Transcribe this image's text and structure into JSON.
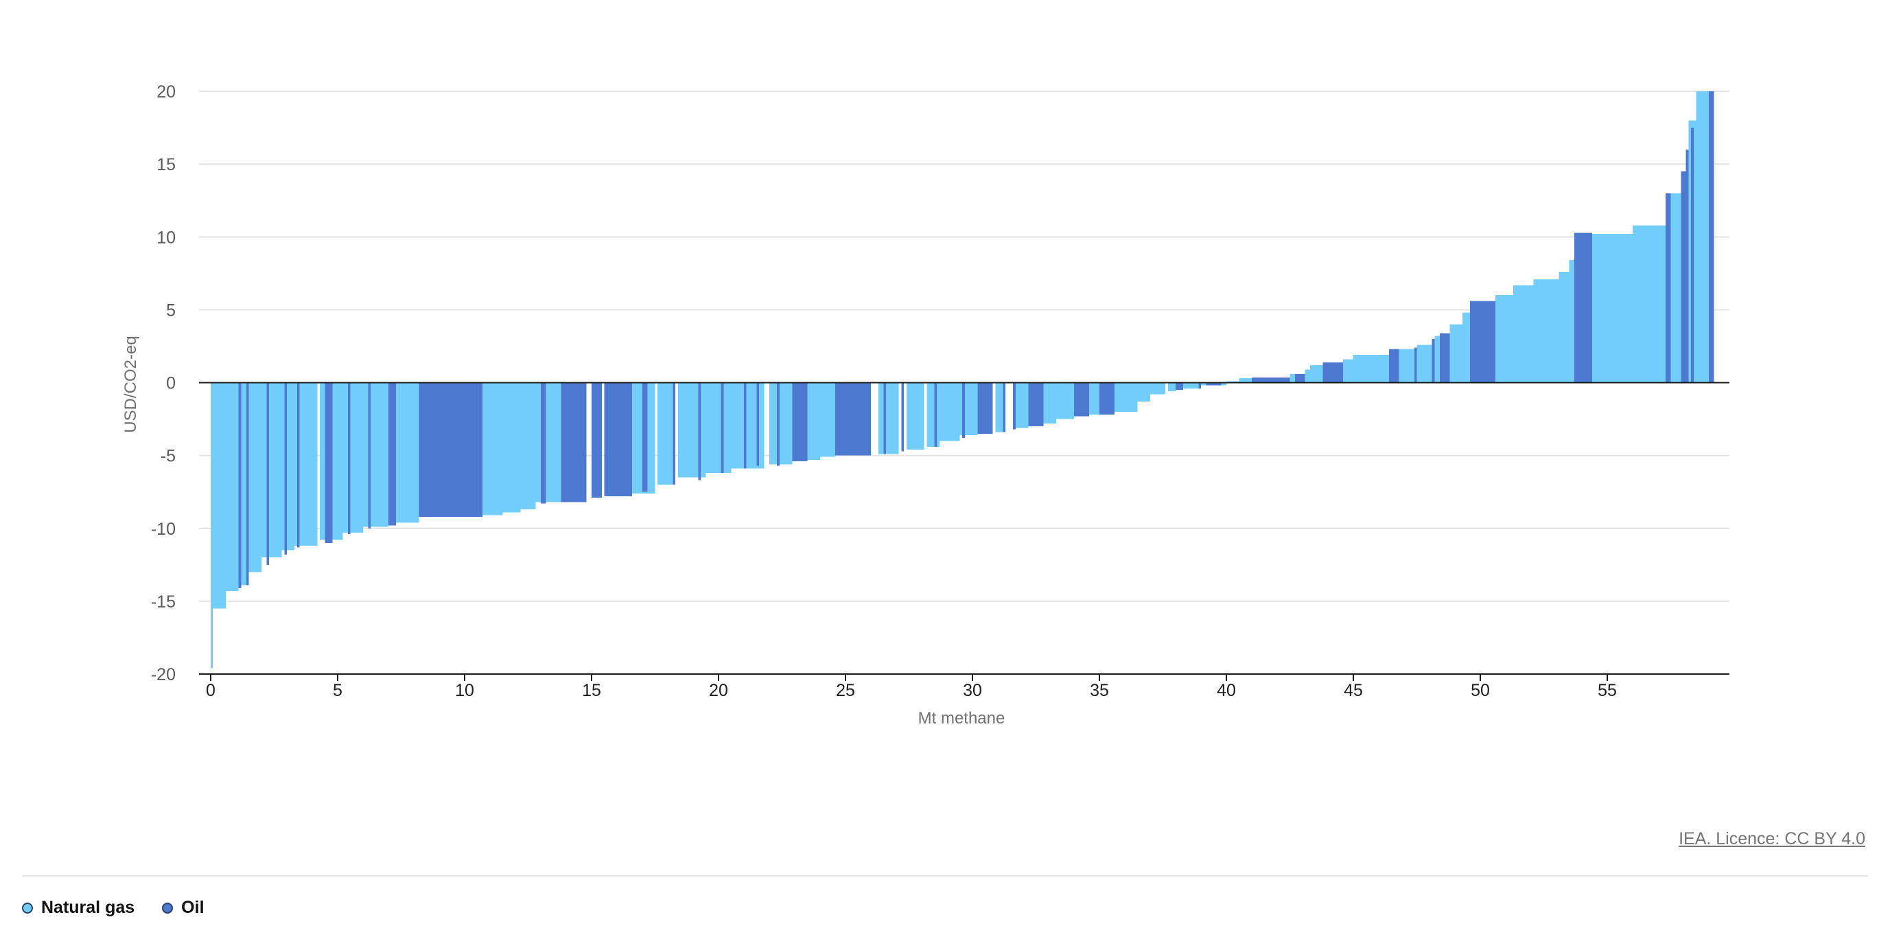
{
  "chart_data": {
    "type": "bar",
    "subtype": "marginal-abatement-cost-curve",
    "xlabel": "Mt methane",
    "ylabel": "USD/CO2-eq",
    "xlim": [
      -0.5,
      60
    ],
    "ylim": [
      -20,
      20
    ],
    "x_ticks": [
      0,
      5,
      10,
      15,
      20,
      25,
      30,
      35,
      40,
      45,
      50,
      55
    ],
    "y_ticks": [
      20,
      15,
      10,
      5,
      0,
      -5,
      -10,
      -15,
      -20
    ],
    "grid": true,
    "legend_position": "bottom-left",
    "colors": {
      "Natural gas": "#72cdfa",
      "Oil": "#4d79d1"
    },
    "series": [
      {
        "name": "Natural gas",
        "color": "#72cdfa",
        "segments": [
          [
            0.0,
            0.08,
            -19.6
          ],
          [
            0.08,
            0.6,
            -15.5
          ],
          [
            0.6,
            1.1,
            -14.3
          ],
          [
            1.1,
            1.4,
            -13.9
          ],
          [
            1.5,
            2.0,
            -13.0
          ],
          [
            2.0,
            2.8,
            -12.0
          ],
          [
            2.8,
            3.3,
            -11.5
          ],
          [
            3.3,
            4.2,
            -11.2
          ],
          [
            4.3,
            5.2,
            -10.8
          ],
          [
            5.2,
            6.0,
            -10.3
          ],
          [
            6.0,
            7.0,
            -9.9
          ],
          [
            7.3,
            8.2,
            -9.6
          ],
          [
            10.7,
            11.5,
            -9.1
          ],
          [
            11.5,
            12.2,
            -8.9
          ],
          [
            12.2,
            12.8,
            -8.7
          ],
          [
            12.8,
            13.8,
            -8.2
          ],
          [
            16.6,
            17.5,
            -7.6
          ],
          [
            17.6,
            18.3,
            -7.0
          ],
          [
            18.4,
            19.5,
            -6.5
          ],
          [
            19.5,
            20.5,
            -6.2
          ],
          [
            20.5,
            21.8,
            -5.9
          ],
          [
            22.0,
            22.9,
            -5.6
          ],
          [
            23.5,
            24.0,
            -5.3
          ],
          [
            24.0,
            24.6,
            -5.1
          ],
          [
            26.3,
            27.1,
            -4.9
          ],
          [
            27.4,
            28.1,
            -4.6
          ],
          [
            28.2,
            28.7,
            -4.4
          ],
          [
            28.7,
            29.5,
            -4.0
          ],
          [
            29.5,
            30.2,
            -3.6
          ],
          [
            30.9,
            31.3,
            -3.4
          ],
          [
            31.6,
            32.2,
            -3.1
          ],
          [
            32.8,
            33.3,
            -2.8
          ],
          [
            33.3,
            34.0,
            -2.5
          ],
          [
            34.6,
            35.0,
            -2.2
          ],
          [
            35.6,
            36.5,
            -2.0
          ],
          [
            36.5,
            37.0,
            -1.3
          ],
          [
            37.0,
            37.6,
            -0.8
          ],
          [
            37.7,
            38.0,
            -0.6
          ],
          [
            38.3,
            38.9,
            -0.4
          ],
          [
            39.0,
            40.0,
            -0.2
          ],
          [
            40.0,
            40.5,
            0.1
          ],
          [
            40.5,
            41.0,
            0.3
          ],
          [
            42.5,
            42.7,
            0.6
          ],
          [
            43.1,
            43.3,
            0.9
          ],
          [
            43.3,
            43.8,
            1.2
          ],
          [
            44.6,
            45.0,
            1.6
          ],
          [
            45.0,
            46.4,
            1.9
          ],
          [
            46.8,
            47.4,
            2.3
          ],
          [
            47.5,
            48.1,
            2.6
          ],
          [
            48.2,
            48.8,
            3.2
          ],
          [
            48.8,
            49.3,
            4.0
          ],
          [
            49.3,
            49.6,
            4.8
          ],
          [
            50.6,
            51.3,
            6.0
          ],
          [
            51.3,
            52.1,
            6.7
          ],
          [
            52.1,
            53.1,
            7.1
          ],
          [
            53.1,
            53.5,
            7.6
          ],
          [
            53.5,
            53.7,
            8.4
          ],
          [
            54.4,
            56.0,
            10.2
          ],
          [
            56.0,
            57.3,
            10.8
          ],
          [
            57.5,
            57.9,
            13.0
          ],
          [
            58.2,
            58.5,
            18.0
          ],
          [
            58.5,
            59.0,
            20.0
          ]
        ]
      },
      {
        "name": "Oil",
        "color": "#4d79d1",
        "segments": [
          [
            1.1,
            1.2,
            -14.1
          ],
          [
            1.4,
            1.5,
            -13.9
          ],
          [
            2.2,
            2.3,
            -12.5
          ],
          [
            2.9,
            3.0,
            -11.8
          ],
          [
            3.4,
            3.5,
            -11.3
          ],
          [
            4.5,
            4.8,
            -11.0
          ],
          [
            5.4,
            5.5,
            -10.4
          ],
          [
            6.2,
            6.3,
            -10.0
          ],
          [
            7.0,
            7.3,
            -9.8
          ],
          [
            8.2,
            10.7,
            -9.2
          ],
          [
            13.0,
            13.2,
            -8.3
          ],
          [
            13.8,
            14.8,
            -8.2
          ],
          [
            15.0,
            15.4,
            -7.9
          ],
          [
            15.5,
            16.6,
            -7.8
          ],
          [
            17.0,
            17.2,
            -7.5
          ],
          [
            18.2,
            18.3,
            -7.0
          ],
          [
            19.2,
            19.3,
            -6.7
          ],
          [
            20.1,
            20.2,
            -6.2
          ],
          [
            21.0,
            21.1,
            -5.9
          ],
          [
            21.5,
            21.6,
            -5.7
          ],
          [
            22.3,
            22.4,
            -5.7
          ],
          [
            22.9,
            23.5,
            -5.4
          ],
          [
            24.6,
            25.0,
            -5.0
          ],
          [
            25.0,
            26.0,
            -5.0
          ],
          [
            26.5,
            26.6,
            -4.9
          ],
          [
            27.2,
            27.3,
            -4.7
          ],
          [
            28.5,
            28.6,
            -4.4
          ],
          [
            29.6,
            29.7,
            -3.8
          ],
          [
            30.2,
            30.8,
            -3.5
          ],
          [
            31.2,
            31.3,
            -3.4
          ],
          [
            31.6,
            31.7,
            -3.2
          ],
          [
            32.2,
            32.8,
            -3.0
          ],
          [
            34.0,
            34.6,
            -2.3
          ],
          [
            35.0,
            35.6,
            -2.2
          ],
          [
            38.0,
            38.3,
            -0.5
          ],
          [
            38.9,
            39.0,
            -0.4
          ],
          [
            39.2,
            39.8,
            -0.2
          ],
          [
            41.0,
            42.5,
            0.35
          ],
          [
            42.7,
            43.1,
            0.6
          ],
          [
            43.8,
            44.6,
            1.4
          ],
          [
            46.4,
            46.8,
            2.3
          ],
          [
            47.4,
            47.5,
            2.4
          ],
          [
            48.1,
            48.2,
            3.0
          ],
          [
            48.4,
            48.8,
            3.4
          ],
          [
            49.6,
            50.6,
            5.6
          ],
          [
            53.7,
            54.4,
            10.3
          ],
          [
            57.3,
            57.5,
            13.0
          ],
          [
            57.9,
            58.1,
            14.5
          ],
          [
            58.1,
            58.2,
            16.0
          ],
          [
            58.3,
            58.4,
            17.5
          ],
          [
            59.0,
            59.2,
            20.0
          ]
        ]
      }
    ]
  },
  "legend": {
    "items": [
      {
        "label": "Natural gas",
        "color": "#72cdfa"
      },
      {
        "label": "Oil",
        "color": "#4d79d1"
      }
    ]
  },
  "credit": "IEA. Licence: CC BY 4.0"
}
